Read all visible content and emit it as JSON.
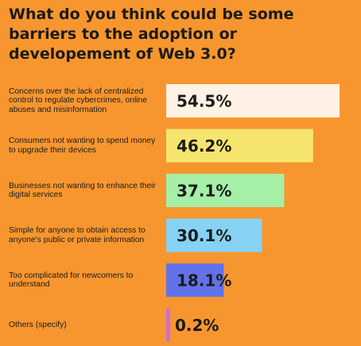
{
  "chart_data": {
    "type": "bar",
    "orientation": "horizontal",
    "title": "What do you think could be some barriers to the adoption or developement of Web 3.0?",
    "categories": [
      "Concerns over the lack of centralized control to regulate cybercrimes, online abuses and misinformation",
      "Consumers not wanting to spend money to upgrade their devices",
      "Businesses not wanting to enhance their digital services",
      "Simple for anyone to obtain access to anyone's public or private information",
      "Too complicated for newcomers to understand",
      "Others (specify)"
    ],
    "values": [
      54.5,
      46.2,
      37.1,
      30.1,
      18.1,
      0.2
    ],
    "value_labels": [
      "54.5%",
      "46.2%",
      "37.1%",
      "30.1%",
      "18.1%",
      "0.2%"
    ],
    "bar_colors": [
      "#fff1e3",
      "#f5e56e",
      "#a5efa7",
      "#86d2f5",
      "#6272ea",
      "#cf6fcf"
    ],
    "xlim": [
      0,
      54.5
    ],
    "grid": false,
    "legend": "none"
  },
  "colors": {
    "background": "#f7962e",
    "text": "#1b1b1b"
  }
}
